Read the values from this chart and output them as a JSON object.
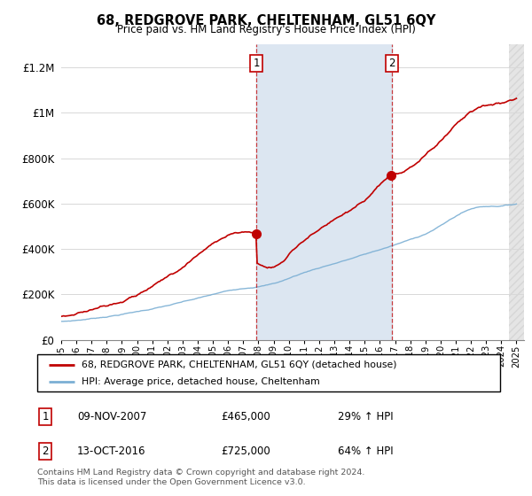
{
  "title": "68, REDGROVE PARK, CHELTENHAM, GL51 6QY",
  "subtitle": "Price paid vs. HM Land Registry's House Price Index (HPI)",
  "ylim": [
    0,
    1300000
  ],
  "yticks": [
    0,
    200000,
    400000,
    600000,
    800000,
    1000000,
    1200000
  ],
  "ytick_labels": [
    "£0",
    "£200K",
    "£400K",
    "£600K",
    "£800K",
    "£1M",
    "£1.2M"
  ],
  "xstart_year": 1995,
  "xend_year": 2025,
  "transaction1_date": 2007.86,
  "transaction1_price": 465000,
  "transaction2_date": 2016.79,
  "transaction2_price": 725000,
  "hpi_color": "#7bafd4",
  "price_color": "#c00000",
  "shading_color": "#dce6f1",
  "legend_label1": "68, REDGROVE PARK, CHELTENHAM, GL51 6QY (detached house)",
  "legend_label2": "HPI: Average price, detached house, Cheltenham",
  "table_row1_num": "1",
  "table_row1_date": "09-NOV-2007",
  "table_row1_price": "£465,000",
  "table_row1_hpi": "29% ↑ HPI",
  "table_row2_num": "2",
  "table_row2_date": "13-OCT-2016",
  "table_row2_price": "£725,000",
  "table_row2_hpi": "64% ↑ HPI",
  "footnote": "Contains HM Land Registry data © Crown copyright and database right 2024.\nThis data is licensed under the Open Government Licence v3.0.",
  "grid_color": "#d8d8d8",
  "hatch_color": "#d0d0d0"
}
